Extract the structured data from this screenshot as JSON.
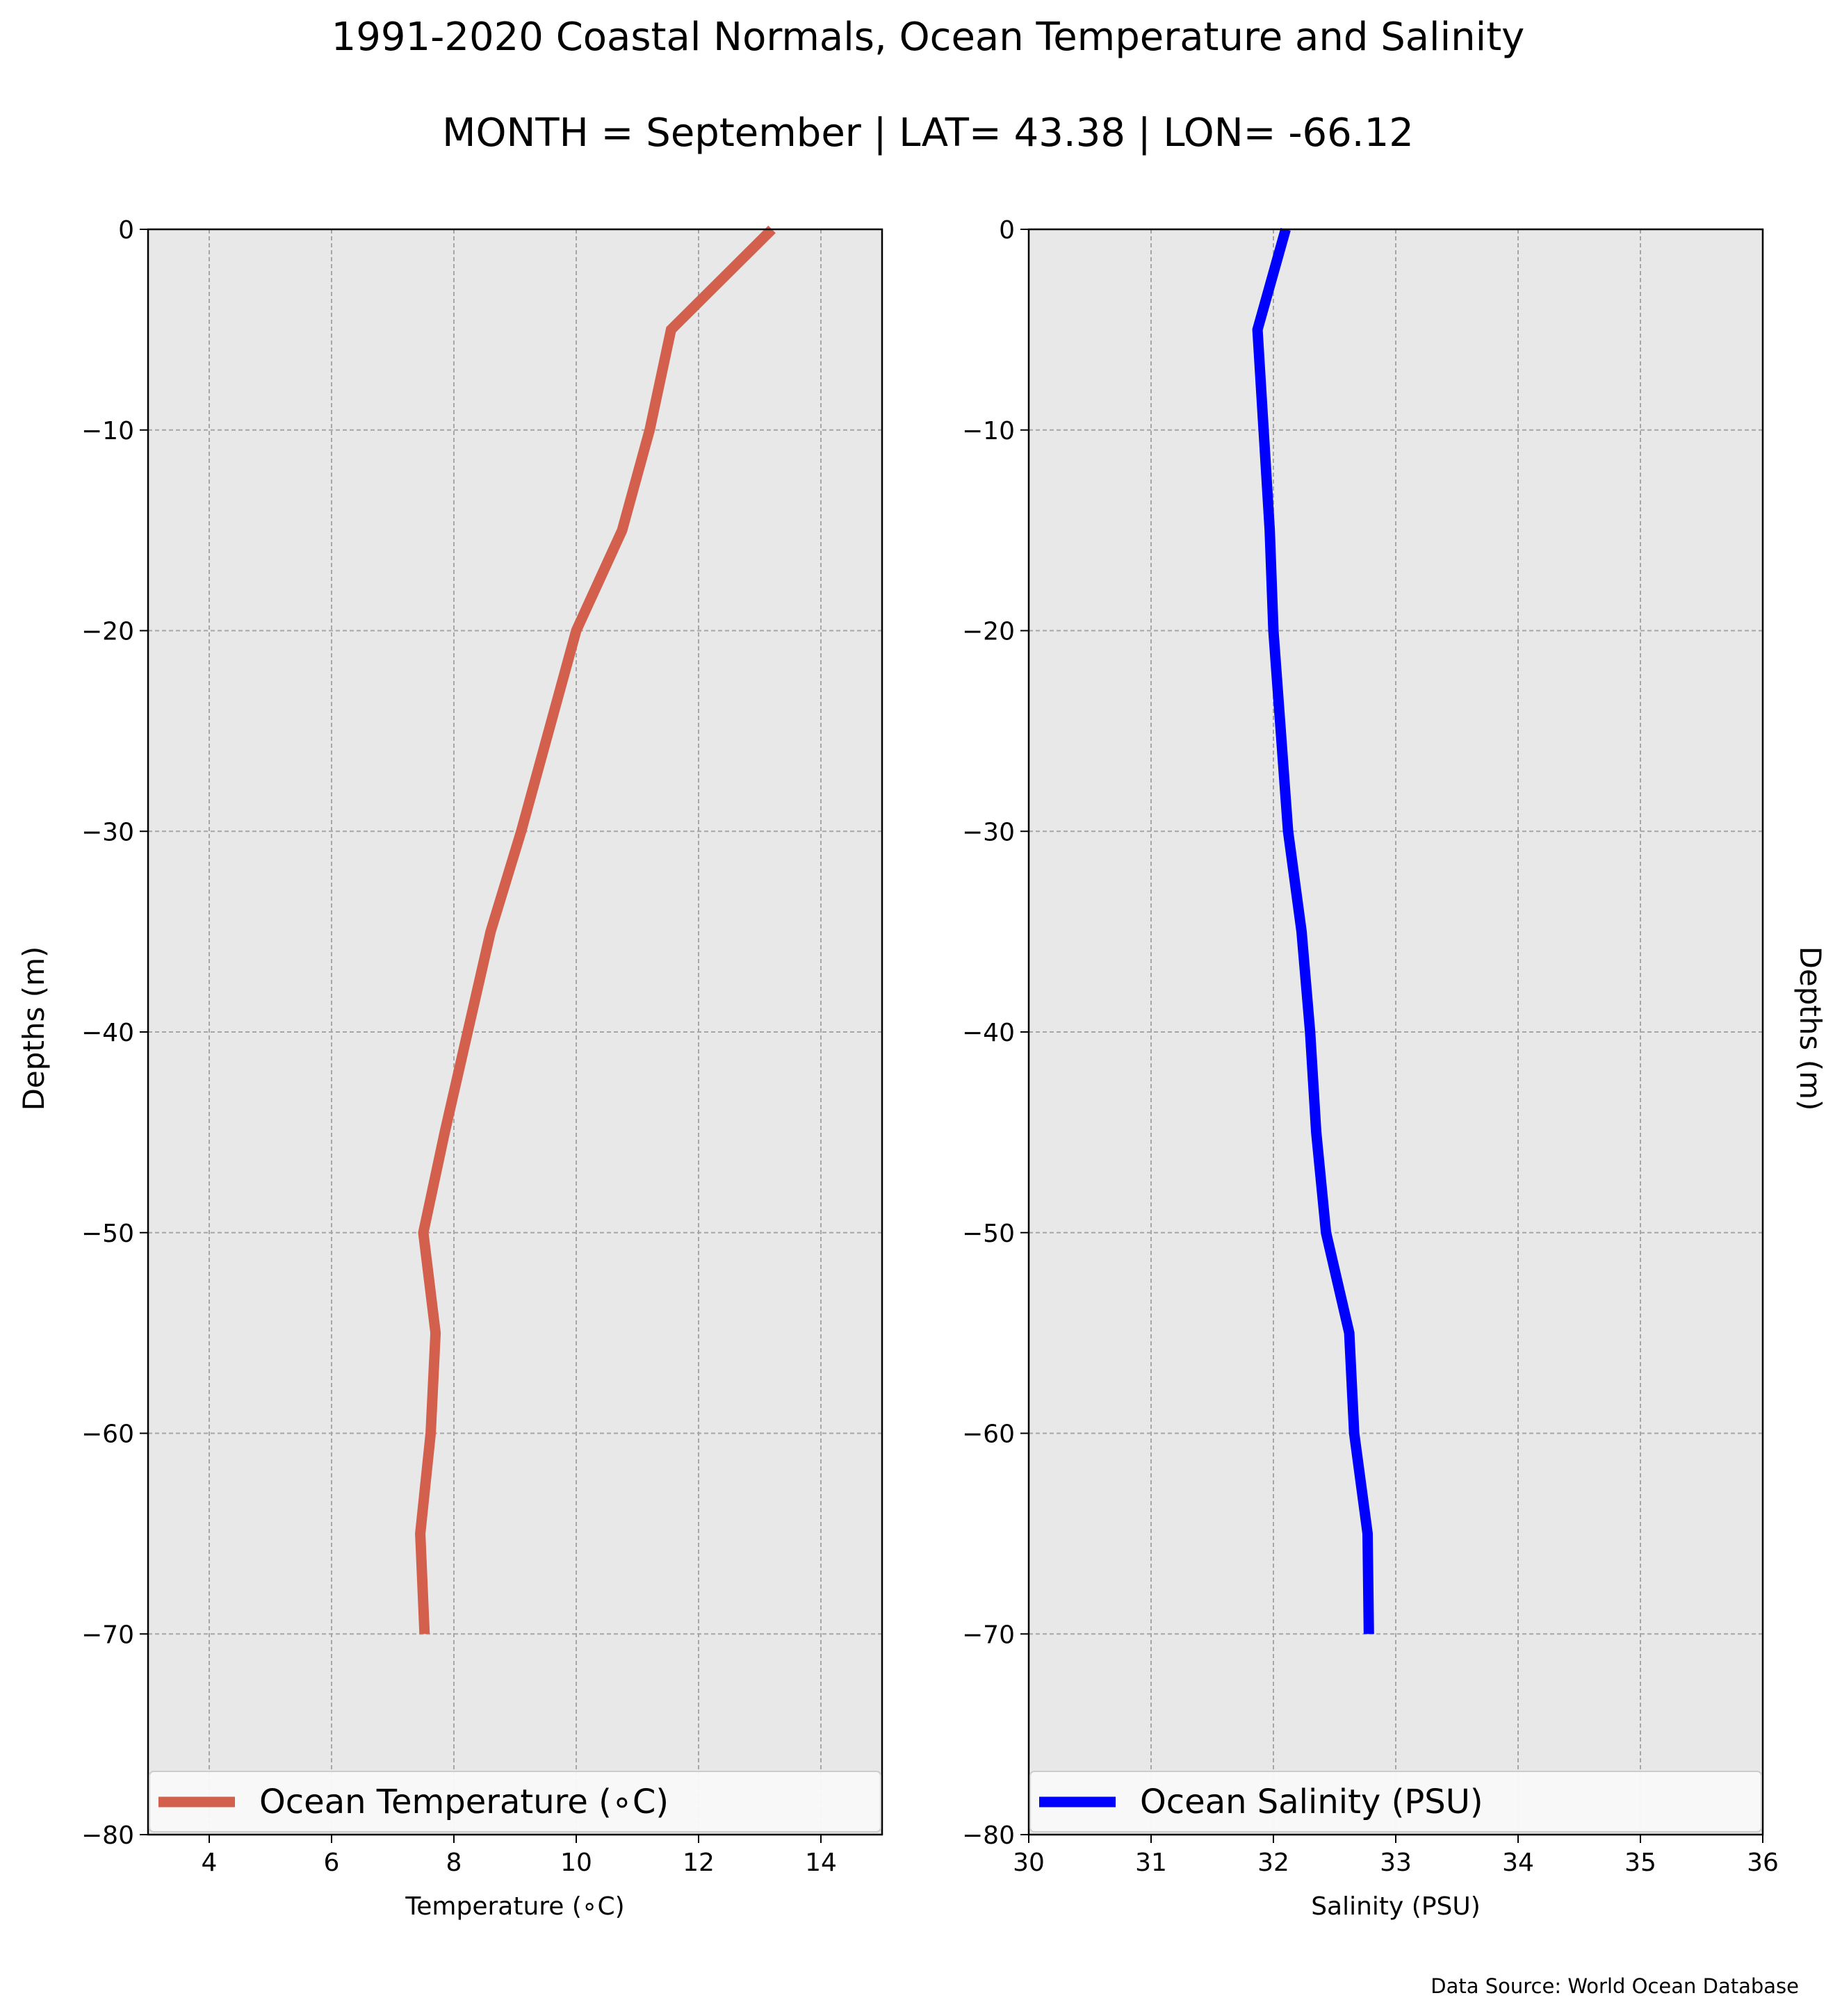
{
  "title": "1991-2020 Coastal Normals, Ocean Temperature and Salinity",
  "subtitle": "MONTH = September | LAT= 43.38 | LON= -66.12",
  "source": "Data Source: World Ocean Database",
  "chart_data": [
    {
      "type": "line",
      "xlabel": "Temperature (∘C)",
      "ylabel": "Depths (m)",
      "xlim": [
        3,
        15
      ],
      "ylim": [
        -80,
        0
      ],
      "xticks": [
        4,
        6,
        8,
        10,
        12,
        14
      ],
      "yticks": [
        0,
        -10,
        -20,
        -30,
        -40,
        -50,
        -60,
        -70,
        -80
      ],
      "xtick_labels": [
        "4",
        "6",
        "8",
        "10",
        "12",
        "14"
      ],
      "ytick_labels": [
        "0",
        "−10",
        "−20",
        "−30",
        "−40",
        "−50",
        "−60",
        "−70",
        "−80"
      ],
      "grid": true,
      "legend_position": "bottom",
      "series": [
        {
          "name": "Ocean Temperature (∘C)",
          "color": "#d35f4d",
          "x": [
            13.2,
            11.55,
            11.2,
            10.75,
            10.0,
            9.1,
            8.6,
            7.85,
            7.5,
            7.7,
            7.62,
            7.45,
            7.52
          ],
          "y": [
            0,
            -5,
            -10,
            -15,
            -20,
            -30,
            -35,
            -45,
            -50,
            -55,
            -60,
            -65,
            -70
          ]
        }
      ]
    },
    {
      "type": "line",
      "xlabel": "Salinity (PSU)",
      "ylabel": "Depths (m)",
      "xlim": [
        30,
        36
      ],
      "ylim": [
        -80,
        0
      ],
      "xticks": [
        30,
        31,
        32,
        33,
        34,
        35,
        36
      ],
      "yticks": [
        0,
        -10,
        -20,
        -30,
        -40,
        -50,
        -60,
        -70,
        -80
      ],
      "xtick_labels": [
        "30",
        "31",
        "32",
        "33",
        "34",
        "35",
        "36"
      ],
      "ytick_labels": [
        "0",
        "−10",
        "−20",
        "−30",
        "−40",
        "−50",
        "−60",
        "−70",
        "−80"
      ],
      "grid": true,
      "legend_position": "bottom",
      "series": [
        {
          "name": "Ocean Salinity (PSU)",
          "color": "#0000ff",
          "x": [
            32.1,
            31.87,
            31.92,
            31.97,
            32.0,
            32.12,
            32.23,
            32.3,
            32.35,
            32.43,
            32.62,
            32.66,
            32.77,
            32.78
          ],
          "y": [
            0,
            -5,
            -10,
            -15,
            -20,
            -30,
            -35,
            -40,
            -45,
            -50,
            -55,
            -60,
            -65,
            -70
          ]
        }
      ]
    }
  ]
}
